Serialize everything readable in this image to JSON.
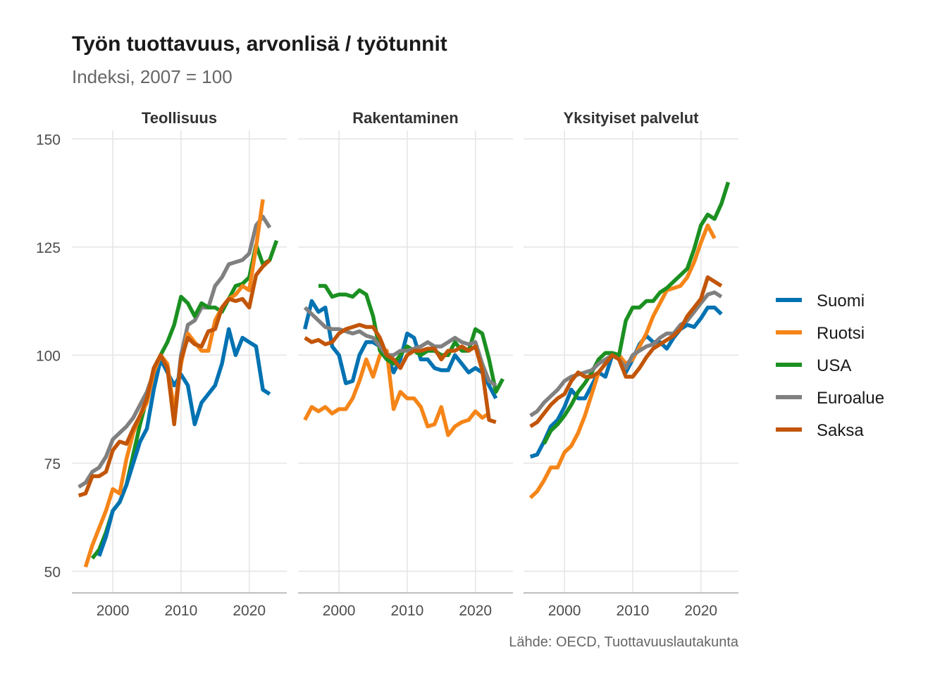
{
  "chart_data": {
    "type": "line",
    "title": "Työn tuottavuus, arvonlisä / työtunnit",
    "subtitle": "Indeksi, 2007 = 100",
    "caption": "Lähde: OECD, Tuottavuuslautakunta",
    "ylim": [
      45,
      152
    ],
    "xlim": [
      1994,
      2025.5
    ],
    "yticks": [
      50,
      75,
      100,
      125
    ],
    "yticks_top": 150,
    "xticks": [
      2000,
      2010,
      2020
    ],
    "grid": true,
    "legend_position": "right",
    "legend": [
      {
        "name": "Suomi",
        "color": "#0072B2"
      },
      {
        "name": "Ruotsi",
        "color": "#F58518"
      },
      {
        "name": "USA",
        "color": "#1B9021"
      },
      {
        "name": "Euroalue",
        "color": "#808080"
      },
      {
        "name": "Saksa",
        "color": "#C25508"
      }
    ],
    "panels": [
      {
        "title": "Teollisuus",
        "series": [
          {
            "name": "Euroalue",
            "x": [
              1995,
              1996,
              1997,
              1998,
              1999,
              2000,
              2001,
              2002,
              2003,
              2004,
              2005,
              2006,
              2007,
              2008,
              2009,
              2010,
              2011,
              2012,
              2013,
              2014,
              2015,
              2016,
              2017,
              2018,
              2019,
              2020,
              2021,
              2022,
              2023
            ],
            "values": [
              69.5,
              70.5,
              73,
              74,
              76.5,
              80.5,
              82,
              83.5,
              85.5,
              88.5,
              91.5,
              96,
              100,
              97,
              86,
              100,
              107,
              108,
              111,
              111,
              116,
              118,
              121,
              121.5,
              122,
              123.5,
              130,
              132,
              129.5
            ]
          },
          {
            "name": "USA",
            "x": [
              1997,
              1998,
              1999,
              2000,
              2001,
              2002,
              2003,
              2004,
              2005,
              2006,
              2007,
              2008,
              2009,
              2010,
              2011,
              2012,
              2013,
              2014,
              2015,
              2016,
              2017,
              2018,
              2019,
              2020,
              2021,
              2022,
              2023,
              2024
            ],
            "values": [
              53,
              55,
              59,
              64,
              66,
              70,
              77,
              84,
              90,
              96,
              100,
              103,
              107,
              113.5,
              112,
              109,
              112,
              111,
              111,
              110,
              113,
              116,
              116.5,
              118,
              125.5,
              121,
              122,
              126.5
            ]
          },
          {
            "name": "Suomi",
            "x": [
              1998,
              1999,
              2000,
              2001,
              2002,
              2003,
              2004,
              2005,
              2006,
              2007,
              2008,
              2009,
              2010,
              2011,
              2012,
              2013,
              2014,
              2015,
              2016,
              2017,
              2018,
              2019,
              2020,
              2021,
              2022,
              2023
            ],
            "values": [
              53.5,
              58,
              64,
              66,
              70,
              75,
              80,
              83,
              92,
              99,
              96,
              93,
              95.5,
              93,
              84,
              89,
              91,
              93,
              98,
              106,
              100,
              104,
              103,
              102,
              92,
              91
            ]
          },
          {
            "name": "Ruotsi",
            "x": [
              1996,
              1997,
              1998,
              1999,
              2000,
              2001,
              2002,
              2003,
              2004,
              2005,
              2006,
              2007,
              2008,
              2009,
              2010,
              2011,
              2012,
              2013,
              2014,
              2015,
              2016,
              2017,
              2018,
              2019,
              2020,
              2021,
              2022
            ],
            "values": [
              51,
              56,
              60,
              64,
              69,
              68,
              76,
              82,
              86,
              89,
              96,
              100,
              98,
              87,
              98,
              105,
              103,
              101,
              101,
              108,
              111,
              113,
              114,
              116,
              115,
              125,
              136
            ]
          },
          {
            "name": "Saksa",
            "x": [
              1995,
              1996,
              1997,
              1998,
              1999,
              2000,
              2001,
              2002,
              2003,
              2004,
              2005,
              2006,
              2007,
              2008,
              2009,
              2010,
              2011,
              2012,
              2013,
              2014,
              2015,
              2016,
              2017,
              2018,
              2019,
              2020,
              2021,
              2022,
              2023
            ],
            "values": [
              67.5,
              68,
              72,
              72,
              73,
              78,
              80,
              79.5,
              83,
              86,
              90,
              97,
              100,
              97,
              84,
              99,
              104,
              102.5,
              102,
              105.5,
              106,
              111,
              113,
              112.5,
              113,
              111,
              118.5,
              120.5,
              122
            ]
          }
        ]
      },
      {
        "title": "Rakentaminen",
        "series": [
          {
            "name": "Suomi",
            "x": [
              1995,
              1996,
              1997,
              1998,
              1999,
              2000,
              2001,
              2002,
              2003,
              2004,
              2005,
              2006,
              2007,
              2008,
              2009,
              2010,
              2011,
              2012,
              2013,
              2014,
              2015,
              2016,
              2017,
              2018,
              2019,
              2020,
              2021,
              2022,
              2023
            ],
            "values": [
              106,
              112.5,
              110,
              111,
              102,
              100,
              93.5,
              94,
              100,
              103,
              103,
              102,
              100,
              96,
              99,
              105,
              104,
              99,
              99,
              97,
              96.5,
              96.5,
              100,
              98,
              96,
              97,
              96,
              93,
              90
            ]
          },
          {
            "name": "Ruotsi",
            "x": [
              1995,
              1996,
              1997,
              1998,
              1999,
              2000,
              2001,
              2002,
              2003,
              2004,
              2005,
              2006,
              2007,
              2008,
              2009,
              2010,
              2011,
              2012,
              2013,
              2014,
              2015,
              2016,
              2017,
              2018,
              2019,
              2020,
              2021,
              2022
            ],
            "values": [
              85,
              88,
              87,
              88,
              86.5,
              87.5,
              87.5,
              90,
              94,
              99,
              95,
              100,
              101,
              87.5,
              91.5,
              90,
              90,
              88,
              83.5,
              84,
              88,
              81.5,
              83.5,
              84.5,
              85,
              87,
              85.5,
              86.5
            ]
          },
          {
            "name": "USA",
            "x": [
              1997,
              1998,
              1999,
              2000,
              2001,
              2002,
              2003,
              2004,
              2005,
              2006,
              2007,
              2008,
              2009,
              2010,
              2011,
              2012,
              2013,
              2014,
              2015,
              2016,
              2017,
              2018,
              2019,
              2020,
              2021,
              2022,
              2023,
              2024
            ],
            "values": [
              116,
              116,
              113.5,
              114,
              114,
              113.5,
              115,
              114,
              109,
              101,
              99,
              98,
              100,
              102,
              101,
              100,
              101,
              101,
              100,
              100,
              103,
              101,
              101,
              106,
              105,
              99,
              91.5,
              94.5
            ]
          },
          {
            "name": "Euroalue",
            "x": [
              1995,
              1996,
              1997,
              1998,
              1999,
              2000,
              2001,
              2002,
              2003,
              2004,
              2005,
              2006,
              2007,
              2008,
              2009,
              2010,
              2011,
              2012,
              2013,
              2014,
              2015,
              2016,
              2017,
              2018,
              2019,
              2020,
              2021,
              2022,
              2023
            ],
            "values": [
              111,
              109.5,
              108,
              106.5,
              106,
              106,
              105.5,
              105,
              105.5,
              104.5,
              104,
              102,
              100,
              100,
              101,
              101,
              101.5,
              102,
              103,
              102,
              102,
              103,
              104,
              103,
              102.5,
              103,
              98,
              94,
              93
            ]
          },
          {
            "name": "Saksa",
            "x": [
              1995,
              1996,
              1997,
              1998,
              1999,
              2000,
              2001,
              2002,
              2003,
              2004,
              2005,
              2006,
              2007,
              2008,
              2009,
              2010,
              2011,
              2012,
              2013,
              2014,
              2015,
              2016,
              2017,
              2018,
              2019,
              2020,
              2021,
              2022,
              2023
            ],
            "values": [
              104,
              103,
              103.5,
              102.5,
              103,
              105,
              106,
              106.5,
              107,
              106.5,
              106.5,
              104,
              100,
              99,
              97,
              100,
              101,
              101,
              101.5,
              101.5,
              99,
              101,
              101,
              102,
              101,
              102,
              96.5,
              85,
              84.5
            ]
          }
        ]
      },
      {
        "title": "Yksityiset palvelut",
        "series": [
          {
            "name": "Suomi",
            "x": [
              1995,
              1996,
              1997,
              1998,
              1999,
              2000,
              2001,
              2002,
              2003,
              2004,
              2005,
              2006,
              2007,
              2008,
              2009,
              2010,
              2011,
              2012,
              2013,
              2014,
              2015,
              2016,
              2017,
              2018,
              2019,
              2020,
              2021,
              2022,
              2023
            ],
            "values": [
              76.5,
              77,
              80,
              83.5,
              85,
              88,
              92,
              90,
              90,
              93,
              96,
              95,
              100,
              99,
              96,
              99,
              102.5,
              104.5,
              103,
              103,
              101.5,
              104,
              106,
              107,
              106.5,
              108.5,
              111,
              111,
              109.5
            ]
          },
          {
            "name": "Ruotsi",
            "x": [
              1995,
              1996,
              1997,
              1998,
              1999,
              2000,
              2001,
              2002,
              2003,
              2004,
              2005,
              2006,
              2007,
              2008,
              2009,
              2010,
              2011,
              2012,
              2013,
              2014,
              2015,
              2016,
              2017,
              2018,
              2019,
              2020,
              2021,
              2022
            ],
            "values": [
              67,
              68.5,
              71,
              74,
              74,
              77.5,
              79,
              82,
              86,
              91,
              96,
              98,
              100,
              100,
              98,
              99,
              102,
              105,
              109,
              112,
              115,
              115.5,
              116,
              118,
              121.5,
              126,
              130,
              127
            ]
          },
          {
            "name": "USA",
            "x": [
              1997,
              1998,
              1999,
              2000,
              2001,
              2002,
              2003,
              2004,
              2005,
              2006,
              2007,
              2008,
              2009,
              2010,
              2011,
              2012,
              2013,
              2014,
              2015,
              2016,
              2017,
              2018,
              2019,
              2020,
              2021,
              2022,
              2023,
              2024
            ],
            "values": [
              79.5,
              82.5,
              84,
              86,
              88.5,
              91.5,
              93.5,
              96,
              99,
              100.5,
              100.5,
              100,
              108,
              111,
              111,
              112.5,
              112.5,
              114.5,
              115.5,
              117,
              118.5,
              120,
              124.5,
              130,
              132.5,
              131.5,
              135,
              140
            ]
          },
          {
            "name": "Euroalue",
            "x": [
              1995,
              1996,
              1997,
              1998,
              1999,
              2000,
              2001,
              2002,
              2003,
              2004,
              2005,
              2006,
              2007,
              2008,
              2009,
              2010,
              2011,
              2012,
              2013,
              2014,
              2015,
              2016,
              2017,
              2018,
              2019,
              2020,
              2021,
              2022,
              2023
            ],
            "values": [
              86,
              87,
              89,
              90.5,
              92,
              94,
              95,
              95.5,
              96,
              96.5,
              98,
              99,
              100,
              99,
              97,
              100,
              101,
              102,
              102.5,
              104,
              105,
              105,
              107,
              108,
              110,
              112,
              114,
              114.5,
              113.5
            ]
          },
          {
            "name": "Saksa",
            "x": [
              1995,
              1996,
              1997,
              1998,
              1999,
              2000,
              2001,
              2002,
              2003,
              2004,
              2005,
              2006,
              2007,
              2008,
              2009,
              2010,
              2011,
              2012,
              2013,
              2014,
              2015,
              2016,
              2017,
              2018,
              2019,
              2020,
              2021,
              2022,
              2023
            ],
            "values": [
              83.5,
              84.5,
              86.5,
              88.5,
              90,
              91,
              94,
              96,
              95,
              95,
              96,
              98,
              100,
              99,
              95,
              95,
              97,
              99.5,
              101.5,
              102.5,
              103.5,
              104.5,
              106,
              109,
              111,
              113,
              118,
              117,
              116
            ]
          }
        ]
      }
    ]
  }
}
